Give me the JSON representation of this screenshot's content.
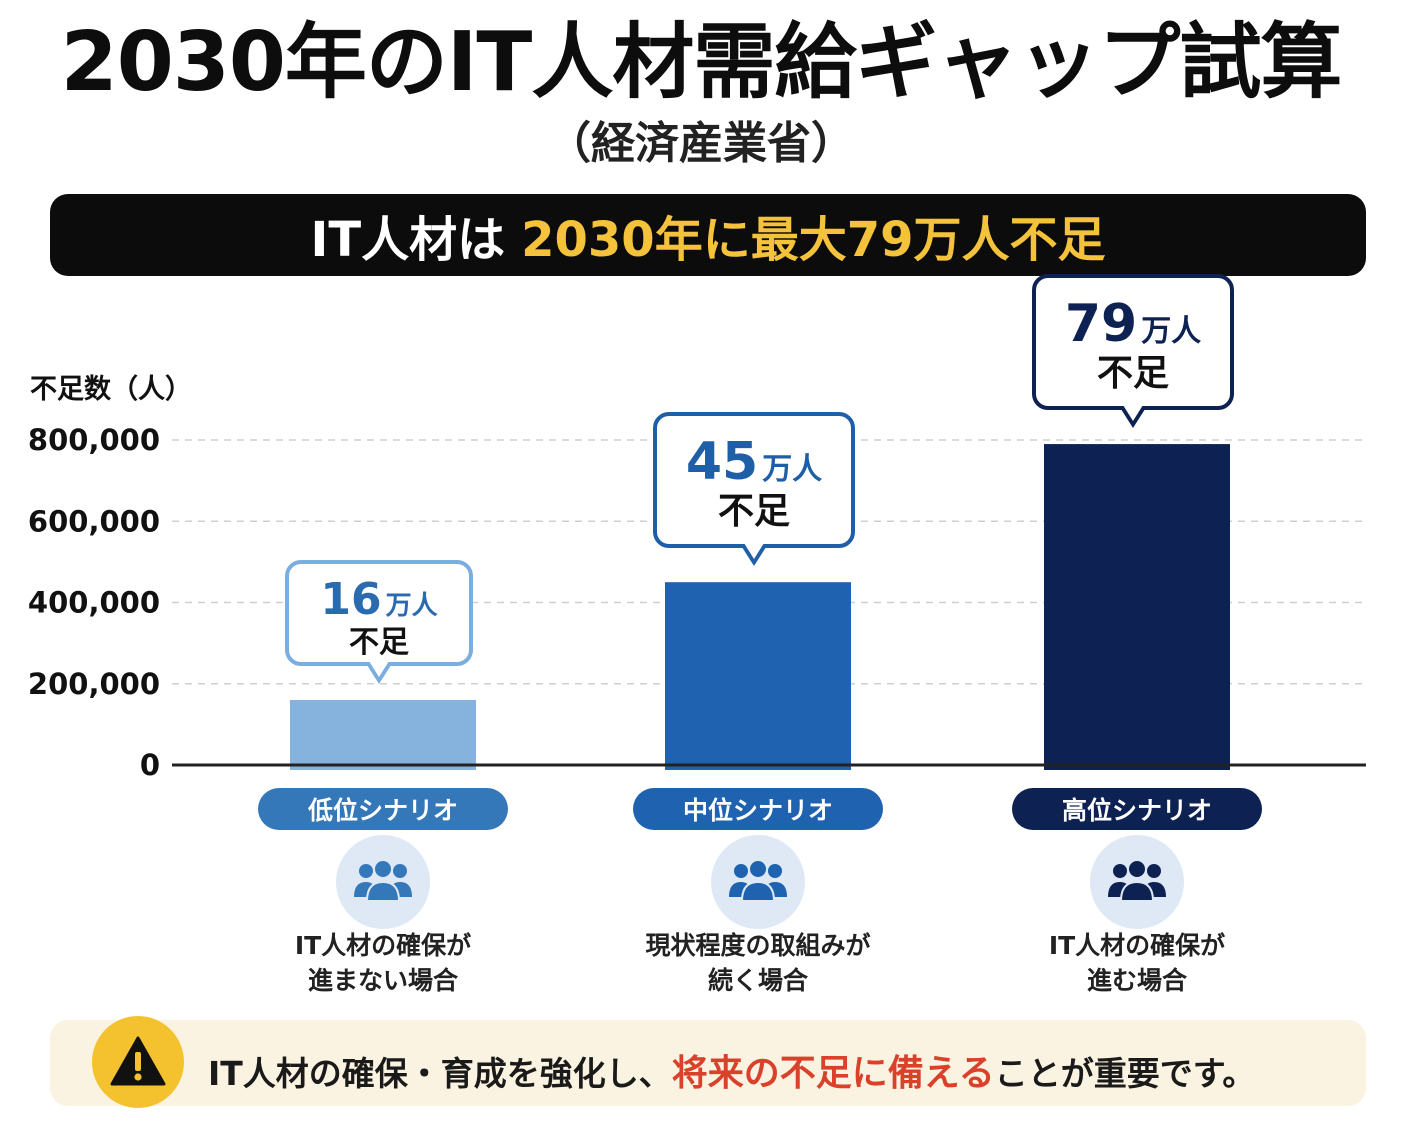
{
  "header": {
    "title": "2030年のIT人材需給ギャップ試算",
    "subtitle": "（経済産業省）"
  },
  "banner": {
    "prefix": "IT人材は",
    "highlight": "2030年に最大79万人不足"
  },
  "chart_data": {
    "type": "bar",
    "ylabel": "不足数（人）",
    "ylim": [
      0,
      800000
    ],
    "yticks": [
      0,
      200000,
      400000,
      600000,
      800000
    ],
    "ytick_labels": [
      "0",
      "200,000",
      "400,000",
      "600,000",
      "800,000"
    ],
    "grid": true,
    "categories": [
      "低位シナリオ",
      "中位シナリオ",
      "高位シナリオ"
    ],
    "values": [
      160000,
      450000,
      790000
    ],
    "callouts": [
      {
        "number": "16",
        "unit": "万人",
        "sub": "不足"
      },
      {
        "number": "45",
        "unit": "万人",
        "sub": "不足"
      },
      {
        "number": "79",
        "unit": "万人",
        "sub": "不足"
      }
    ],
    "descriptions": [
      [
        "IT人材の確保が",
        "進まない場合"
      ],
      [
        "現状程度の取組みが",
        "続く場合"
      ],
      [
        "IT人材の確保が",
        "進む場合"
      ]
    ],
    "colors": [
      "#86b3de",
      "#1f63b0",
      "#0d2253"
    ],
    "text_colors": [
      "#2a6bb0",
      "#1f5fa8",
      "#0d2253"
    ],
    "pill_colors": [
      "#3578b9",
      "#1f63b0",
      "#0d2253"
    ]
  },
  "icons": {
    "group": "people-group-icon",
    "warning": "warning-icon"
  },
  "footer": {
    "before": "IT人材の確保・育成を強化し、",
    "highlight": "将来の不足に備える",
    "after": "ことが重要です。"
  }
}
